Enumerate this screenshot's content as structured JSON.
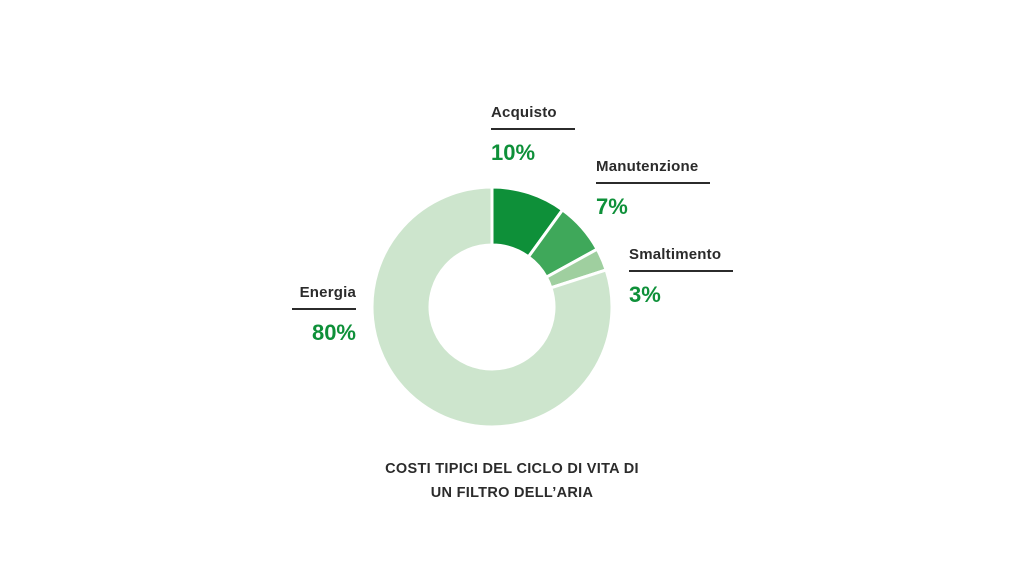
{
  "chart_data": {
    "type": "pie",
    "donut": true,
    "title_lines": [
      "COSTI TIPICI DEL CICLO DI VITA DI",
      "UN FILTRO DELL’ARIA"
    ],
    "slices": [
      {
        "label": "Acquisto",
        "value": 10,
        "value_label": "10%",
        "color": "#0e9039"
      },
      {
        "label": "Manutenzione",
        "value": 7,
        "value_label": "7%",
        "color": "#3fa85a"
      },
      {
        "label": "Smaltimento",
        "value": 3,
        "value_label": "3%",
        "color": "#9fcf9f"
      },
      {
        "label": "Energia",
        "value": 80,
        "value_label": "80%",
        "color": "#cde5cd"
      }
    ],
    "label_color": "#0e9039",
    "legend": "none"
  }
}
